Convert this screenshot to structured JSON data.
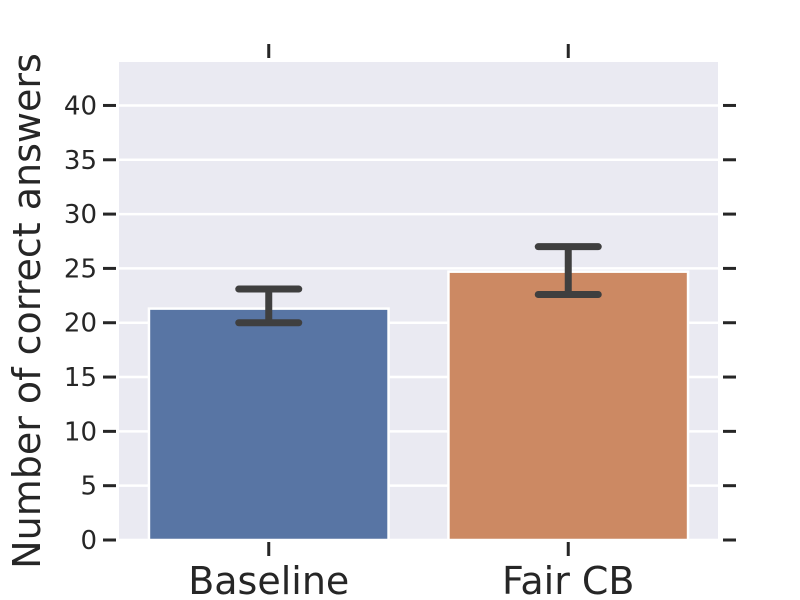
{
  "chart_data": {
    "type": "bar",
    "categories": [
      "Baseline",
      "Fair CB"
    ],
    "values": [
      21.3,
      24.7
    ],
    "error_bars": [
      {
        "low": 20.0,
        "high": 23.1
      },
      {
        "low": 22.6,
        "high": 27.0
      }
    ],
    "ylabel": "Number of correct answers",
    "ylim": [
      0,
      44
    ],
    "yticks": [
      0,
      5,
      10,
      15,
      20,
      25,
      30,
      35,
      40
    ],
    "ytick_labels": [
      "0",
      "5",
      "10",
      "15",
      "20",
      "25",
      "30",
      "35",
      "40"
    ],
    "grid": true,
    "colors": {
      "bars": [
        "#5875a4",
        "#cc8963"
      ],
      "background": "#eaeaf2",
      "grid": "#ffffff",
      "error_bar": "#3f3f3f",
      "ticks": "#262626"
    }
  }
}
